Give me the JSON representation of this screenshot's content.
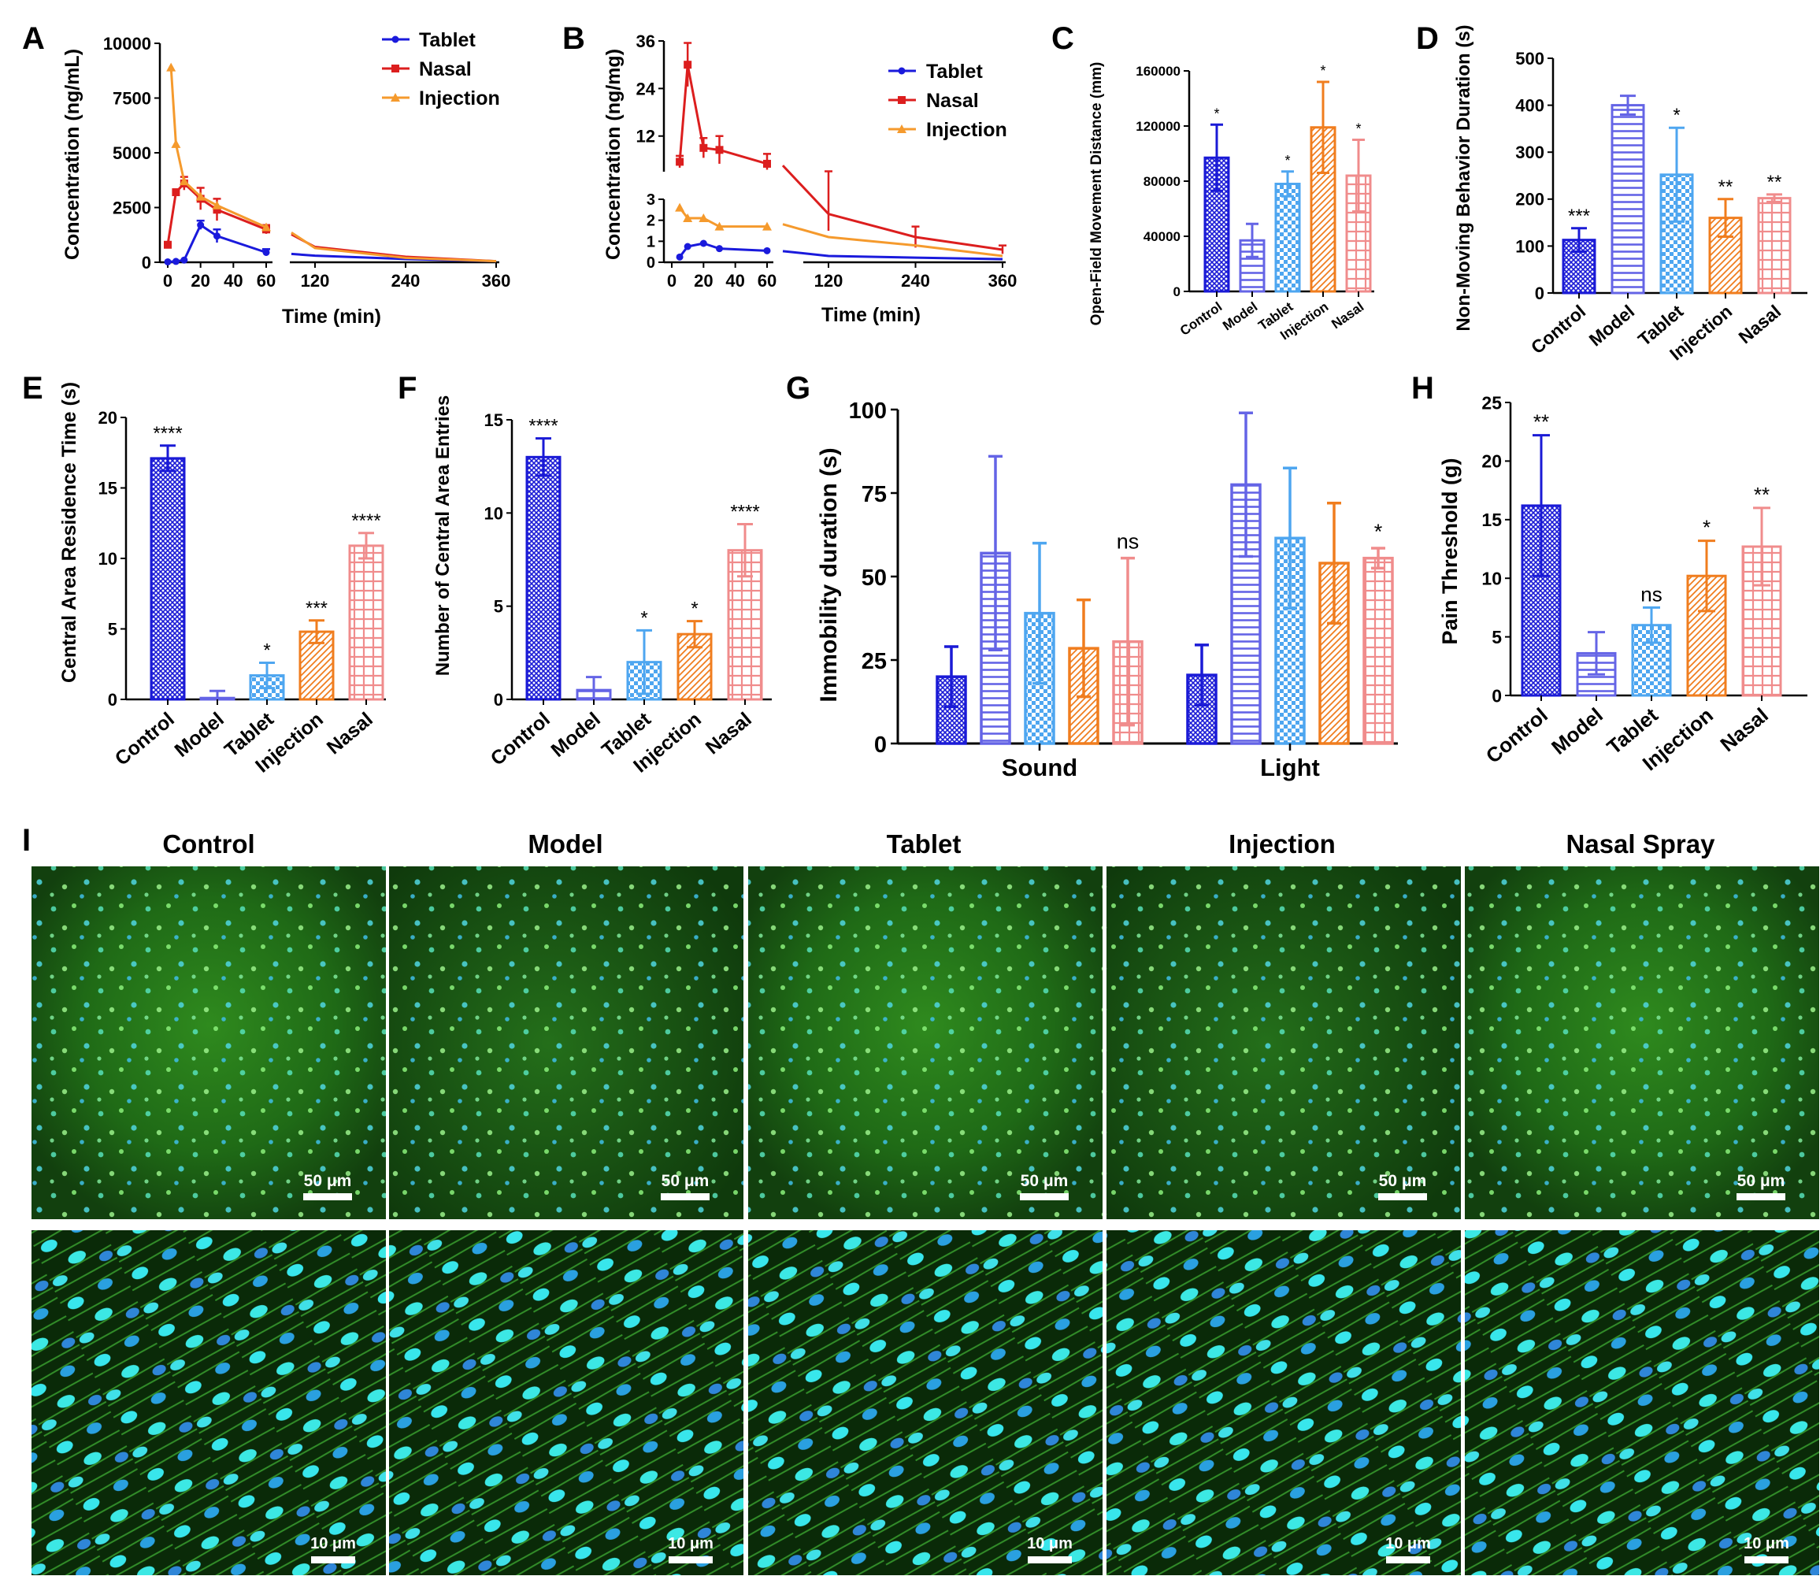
{
  "colors": {
    "control": "#1a1ad6",
    "model": "#6464e6",
    "tablet": "#4ea6f0",
    "injection": "#f07d1e",
    "nasal": "#f08c8c",
    "tablet_line": "#1a1adc",
    "nasal_line": "#dc1e1e",
    "injection_line": "#f59a2d"
  },
  "panels": {
    "A": "A",
    "B": "B",
    "C": "C",
    "D": "D",
    "E": "E",
    "F": "F",
    "G": "G",
    "H": "H",
    "I": "I"
  },
  "chart_data": [
    {
      "id": "A",
      "type": "line",
      "ylabel": "Concentration (ng/mL)",
      "xlabel": "Time (min)",
      "x_ticks_left": [
        "0",
        "20",
        "40",
        "60"
      ],
      "x_ticks_right": [
        "120",
        "240",
        "360"
      ],
      "y_ticks": [
        "0",
        "2500",
        "5000",
        "7500",
        "10000"
      ],
      "ylim": [
        0,
        10000
      ],
      "legend": [
        "Tablet",
        "Nasal",
        "Injection"
      ],
      "series": [
        {
          "name": "Tablet",
          "points": [
            [
              0,
              20
            ],
            [
              5,
              40
            ],
            [
              10,
              100
            ],
            [
              20,
              1700
            ],
            [
              30,
              1200
            ],
            [
              60,
              450
            ],
            [
              120,
              300
            ],
            [
              240,
              150
            ],
            [
              360,
              50
            ]
          ],
          "err": [
            0,
            0,
            0,
            200,
            300,
            150,
            0,
            0,
            0
          ]
        },
        {
          "name": "Nasal",
          "points": [
            [
              0,
              800
            ],
            [
              5,
              3200
            ],
            [
              10,
              3600
            ],
            [
              20,
              2900
            ],
            [
              30,
              2400
            ],
            [
              60,
              1500
            ],
            [
              120,
              700
            ],
            [
              240,
              250
            ],
            [
              360,
              50
            ]
          ],
          "err": [
            0,
            0,
            300,
            500,
            500,
            200,
            0,
            0,
            0
          ]
        },
        {
          "name": "Injection",
          "points": [
            [
              2,
              8900
            ],
            [
              5,
              5400
            ],
            [
              10,
              3700
            ],
            [
              20,
              3000
            ],
            [
              30,
              2600
            ],
            [
              60,
              1600
            ],
            [
              120,
              650
            ],
            [
              240,
              200
            ],
            [
              360,
              50
            ]
          ],
          "err": [
            0,
            0,
            0,
            0,
            0,
            0,
            0,
            0,
            0
          ]
        }
      ]
    },
    {
      "id": "B",
      "type": "line",
      "ylabel": "Concentration (ng/mg)",
      "xlabel": "Time (min)",
      "x_ticks_left": [
        "0",
        "20",
        "40",
        "60"
      ],
      "x_ticks_right": [
        "120",
        "240",
        "360"
      ],
      "y_ticks_top": [
        "12",
        "24",
        "36"
      ],
      "y_ticks_bottom": [
        "0",
        "1",
        "2",
        "3"
      ],
      "legend": [
        "Tablet",
        "Nasal",
        "Injection"
      ],
      "series": [
        {
          "name": "Tablet",
          "points": [
            [
              5,
              0.25
            ],
            [
              10,
              0.75
            ],
            [
              20,
              0.9
            ],
            [
              30,
              0.65
            ],
            [
              60,
              0.55
            ],
            [
              120,
              0.3
            ],
            [
              240,
              0.22
            ],
            [
              360,
              0.15
            ]
          ]
        },
        {
          "name": "Nasal",
          "points": [
            [
              5,
              5.5
            ],
            [
              10,
              30
            ],
            [
              20,
              9
            ],
            [
              30,
              8.5
            ],
            [
              60,
              5
            ],
            [
              120,
              2.3
            ],
            [
              240,
              1.2
            ],
            [
              360,
              0.6
            ]
          ],
          "err": [
            1.5,
            5.5,
            2.5,
            3.5,
            2.5,
            0.8,
            0.5,
            0.2
          ]
        },
        {
          "name": "Injection",
          "points": [
            [
              5,
              2.6
            ],
            [
              10,
              2.1
            ],
            [
              20,
              2.1
            ],
            [
              30,
              1.7
            ],
            [
              60,
              1.7
            ],
            [
              120,
              1.2
            ],
            [
              240,
              0.8
            ],
            [
              360,
              0.3
            ]
          ]
        }
      ]
    },
    {
      "id": "C",
      "type": "bar",
      "ylabel": "Open-Field Movement Distance (mm)",
      "categories": [
        "Control",
        "Model",
        "Tablet",
        "Injection",
        "Nasal"
      ],
      "values": [
        97000,
        37000,
        78000,
        119000,
        84000
      ],
      "errors": [
        24000,
        12000,
        9000,
        33000,
        26000
      ],
      "sig": [
        "*",
        "",
        "*",
        "*",
        "*"
      ],
      "ylim": [
        0,
        160000
      ],
      "y_ticks": [
        "0",
        "40000",
        "80000",
        "120000",
        "160000"
      ]
    },
    {
      "id": "D",
      "type": "bar",
      "ylabel": "Non-Moving Behavior Duration (s)",
      "categories": [
        "Control",
        "Model",
        "Tablet",
        "Injection",
        "Nasal"
      ],
      "values": [
        113,
        400,
        252,
        160,
        202
      ],
      "errors": [
        25,
        20,
        100,
        40,
        8
      ],
      "sig": [
        "***",
        "",
        "*",
        "**",
        "**"
      ],
      "ylim": [
        0,
        500
      ],
      "y_ticks": [
        "0",
        "100",
        "200",
        "300",
        "400",
        "500"
      ]
    },
    {
      "id": "E",
      "type": "bar",
      "ylabel": "Central Area Residence Time (s)",
      "categories": [
        "Control",
        "Model",
        "Tablet",
        "Injection",
        "Nasal"
      ],
      "values": [
        17.1,
        0.1,
        1.7,
        4.8,
        10.9
      ],
      "errors": [
        0.9,
        0.5,
        0.9,
        0.8,
        0.9
      ],
      "sig": [
        "****",
        "",
        "*",
        "***",
        "****"
      ],
      "ylim": [
        0,
        20
      ],
      "y_ticks": [
        "0",
        "5",
        "10",
        "15",
        "20"
      ]
    },
    {
      "id": "F",
      "type": "bar",
      "ylabel": "Number of Central Area Entries",
      "categories": [
        "Control",
        "Model",
        "Tablet",
        "Injection",
        "Nasal"
      ],
      "values": [
        13,
        0.5,
        2,
        3.5,
        8
      ],
      "errors": [
        1,
        0.7,
        1.7,
        0.7,
        1.4
      ],
      "sig": [
        "****",
        "",
        "*",
        "*",
        "****"
      ],
      "ylim": [
        0,
        15
      ],
      "y_ticks": [
        "0",
        "5",
        "10",
        "15"
      ]
    },
    {
      "id": "G",
      "type": "bar",
      "ylabel": "Immobility duration (s)",
      "groups": [
        "Sound",
        "Light"
      ],
      "categories": [
        "Control",
        "Model",
        "Tablet",
        "Injection",
        "Nasal"
      ],
      "values": [
        [
          20,
          57,
          39,
          28.5,
          30.5
        ],
        [
          20.5,
          77.5,
          61.5,
          54,
          55.5
        ]
      ],
      "errors": [
        [
          9,
          29,
          21,
          14.5,
          25
        ],
        [
          9,
          21.5,
          21,
          18,
          3
        ]
      ],
      "sig": [
        [
          "",
          "",
          "",
          "",
          "ns"
        ],
        [
          "",
          "",
          "",
          "",
          "*"
        ]
      ],
      "ylim": [
        0,
        100
      ],
      "y_ticks": [
        "0",
        "25",
        "50",
        "75",
        "100"
      ]
    },
    {
      "id": "H",
      "type": "bar",
      "ylabel": "Pain Threshold (g)",
      "categories": [
        "Control",
        "Model",
        "Tablet",
        "Injection",
        "Nasal"
      ],
      "values": [
        16.2,
        3.6,
        6,
        10.2,
        12.7
      ],
      "errors": [
        6,
        1.8,
        1.5,
        3,
        3.3
      ],
      "sig": [
        "**",
        "",
        "ns",
        "*",
        "**"
      ],
      "ylim": [
        0,
        25
      ],
      "y_ticks": [
        "0",
        "5",
        "10",
        "15",
        "20",
        "25"
      ]
    }
  ],
  "micrographs": {
    "columns": [
      "Control",
      "Model",
      "Tablet",
      "Injection",
      "Nasal Spray"
    ],
    "scale_top": "50 μm",
    "scale_bottom": "10 μm"
  }
}
